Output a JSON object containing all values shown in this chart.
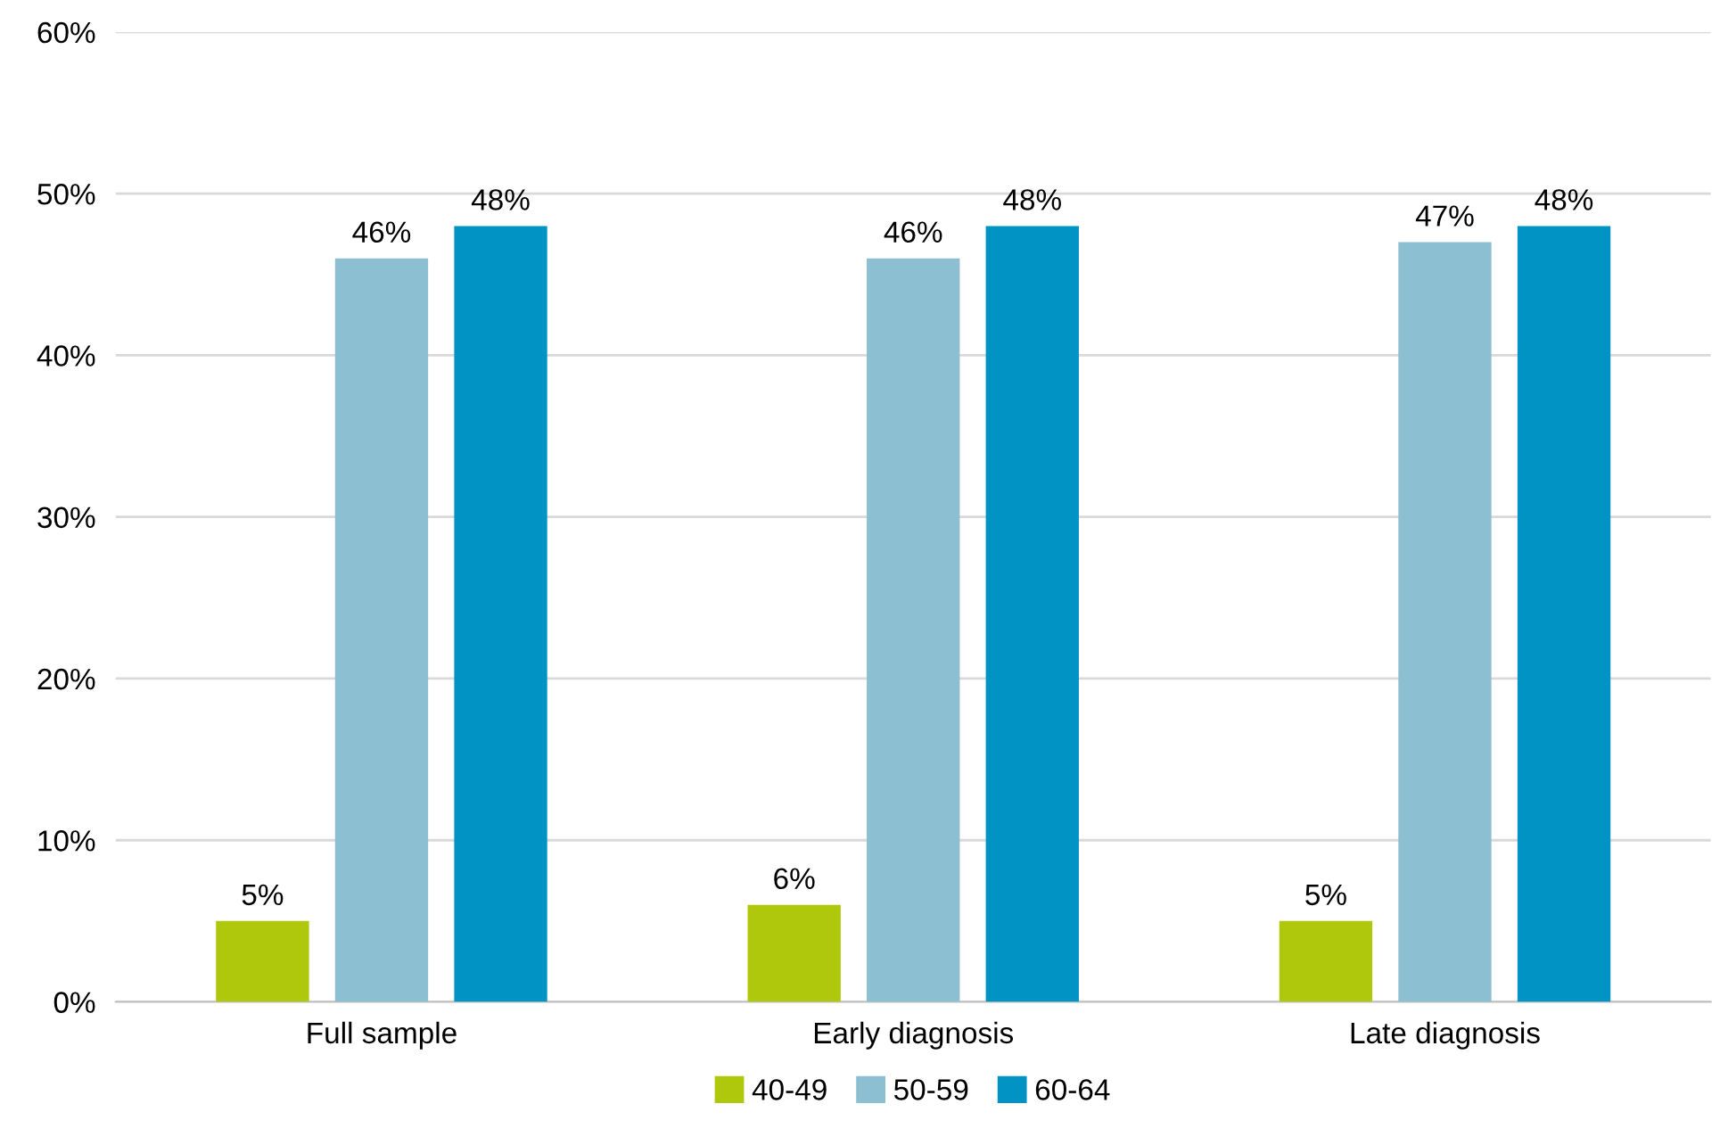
{
  "chart_data": {
    "type": "bar",
    "categories": [
      "Full sample",
      "Early diagnosis",
      "Late diagnosis"
    ],
    "series": [
      {
        "name": "40-49",
        "color": "#b0c80c",
        "values": [
          5,
          6,
          5
        ],
        "value_labels": [
          "5%",
          "6%",
          "5%"
        ]
      },
      {
        "name": "50-59",
        "color": "#8dbfd2",
        "values": [
          46,
          46,
          47
        ],
        "value_labels": [
          "46%",
          "46%",
          "47%"
        ]
      },
      {
        "name": "60-64",
        "color": "#0093c4",
        "values": [
          48,
          48,
          48
        ],
        "value_labels": [
          "48%",
          "48%",
          "48%"
        ]
      }
    ],
    "ylim": [
      0,
      60
    ],
    "yticks": [
      {
        "value": 0,
        "label": "0%"
      },
      {
        "value": 10,
        "label": "10%"
      },
      {
        "value": 20,
        "label": "20%"
      },
      {
        "value": 30,
        "label": "30%"
      },
      {
        "value": 40,
        "label": "40%"
      },
      {
        "value": 50,
        "label": "50%"
      },
      {
        "value": 60,
        "label": "60%"
      }
    ],
    "grid": "y",
    "legend": "bottom"
  }
}
